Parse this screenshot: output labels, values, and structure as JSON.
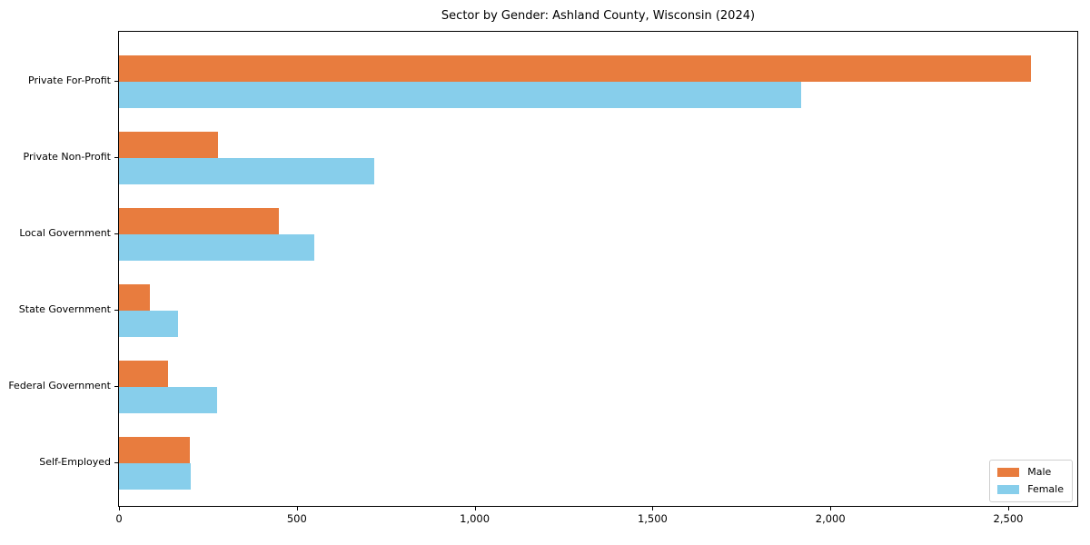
{
  "chart_data": {
    "type": "bar",
    "orientation": "horizontal",
    "title": "Sector by Gender: Ashland County, Wisconsin (2024)",
    "xlabel": "",
    "ylabel": "",
    "categories": [
      "Private For-Profit",
      "Private Non-Profit",
      "Local Government",
      "State Government",
      "Federal Government",
      "Self-Employed"
    ],
    "series": [
      {
        "name": "Male",
        "color": "#e87c3e",
        "values": [
          2564,
          279,
          449,
          86,
          137,
          200
        ]
      },
      {
        "name": "Female",
        "color": "#87ceeb",
        "values": [
          1918,
          717,
          549,
          165,
          276,
          202
        ]
      }
    ],
    "xlim": [
      0,
      2694
    ],
    "x_ticks": [
      {
        "value": 0,
        "label": "0"
      },
      {
        "value": 500,
        "label": "500"
      },
      {
        "value": 1000,
        "label": "1,000"
      },
      {
        "value": 1500,
        "label": "1,500"
      },
      {
        "value": 2000,
        "label": "2,000"
      },
      {
        "value": 2500,
        "label": "2,500"
      }
    ],
    "grid": false,
    "legend": {
      "position": "lower right"
    }
  }
}
